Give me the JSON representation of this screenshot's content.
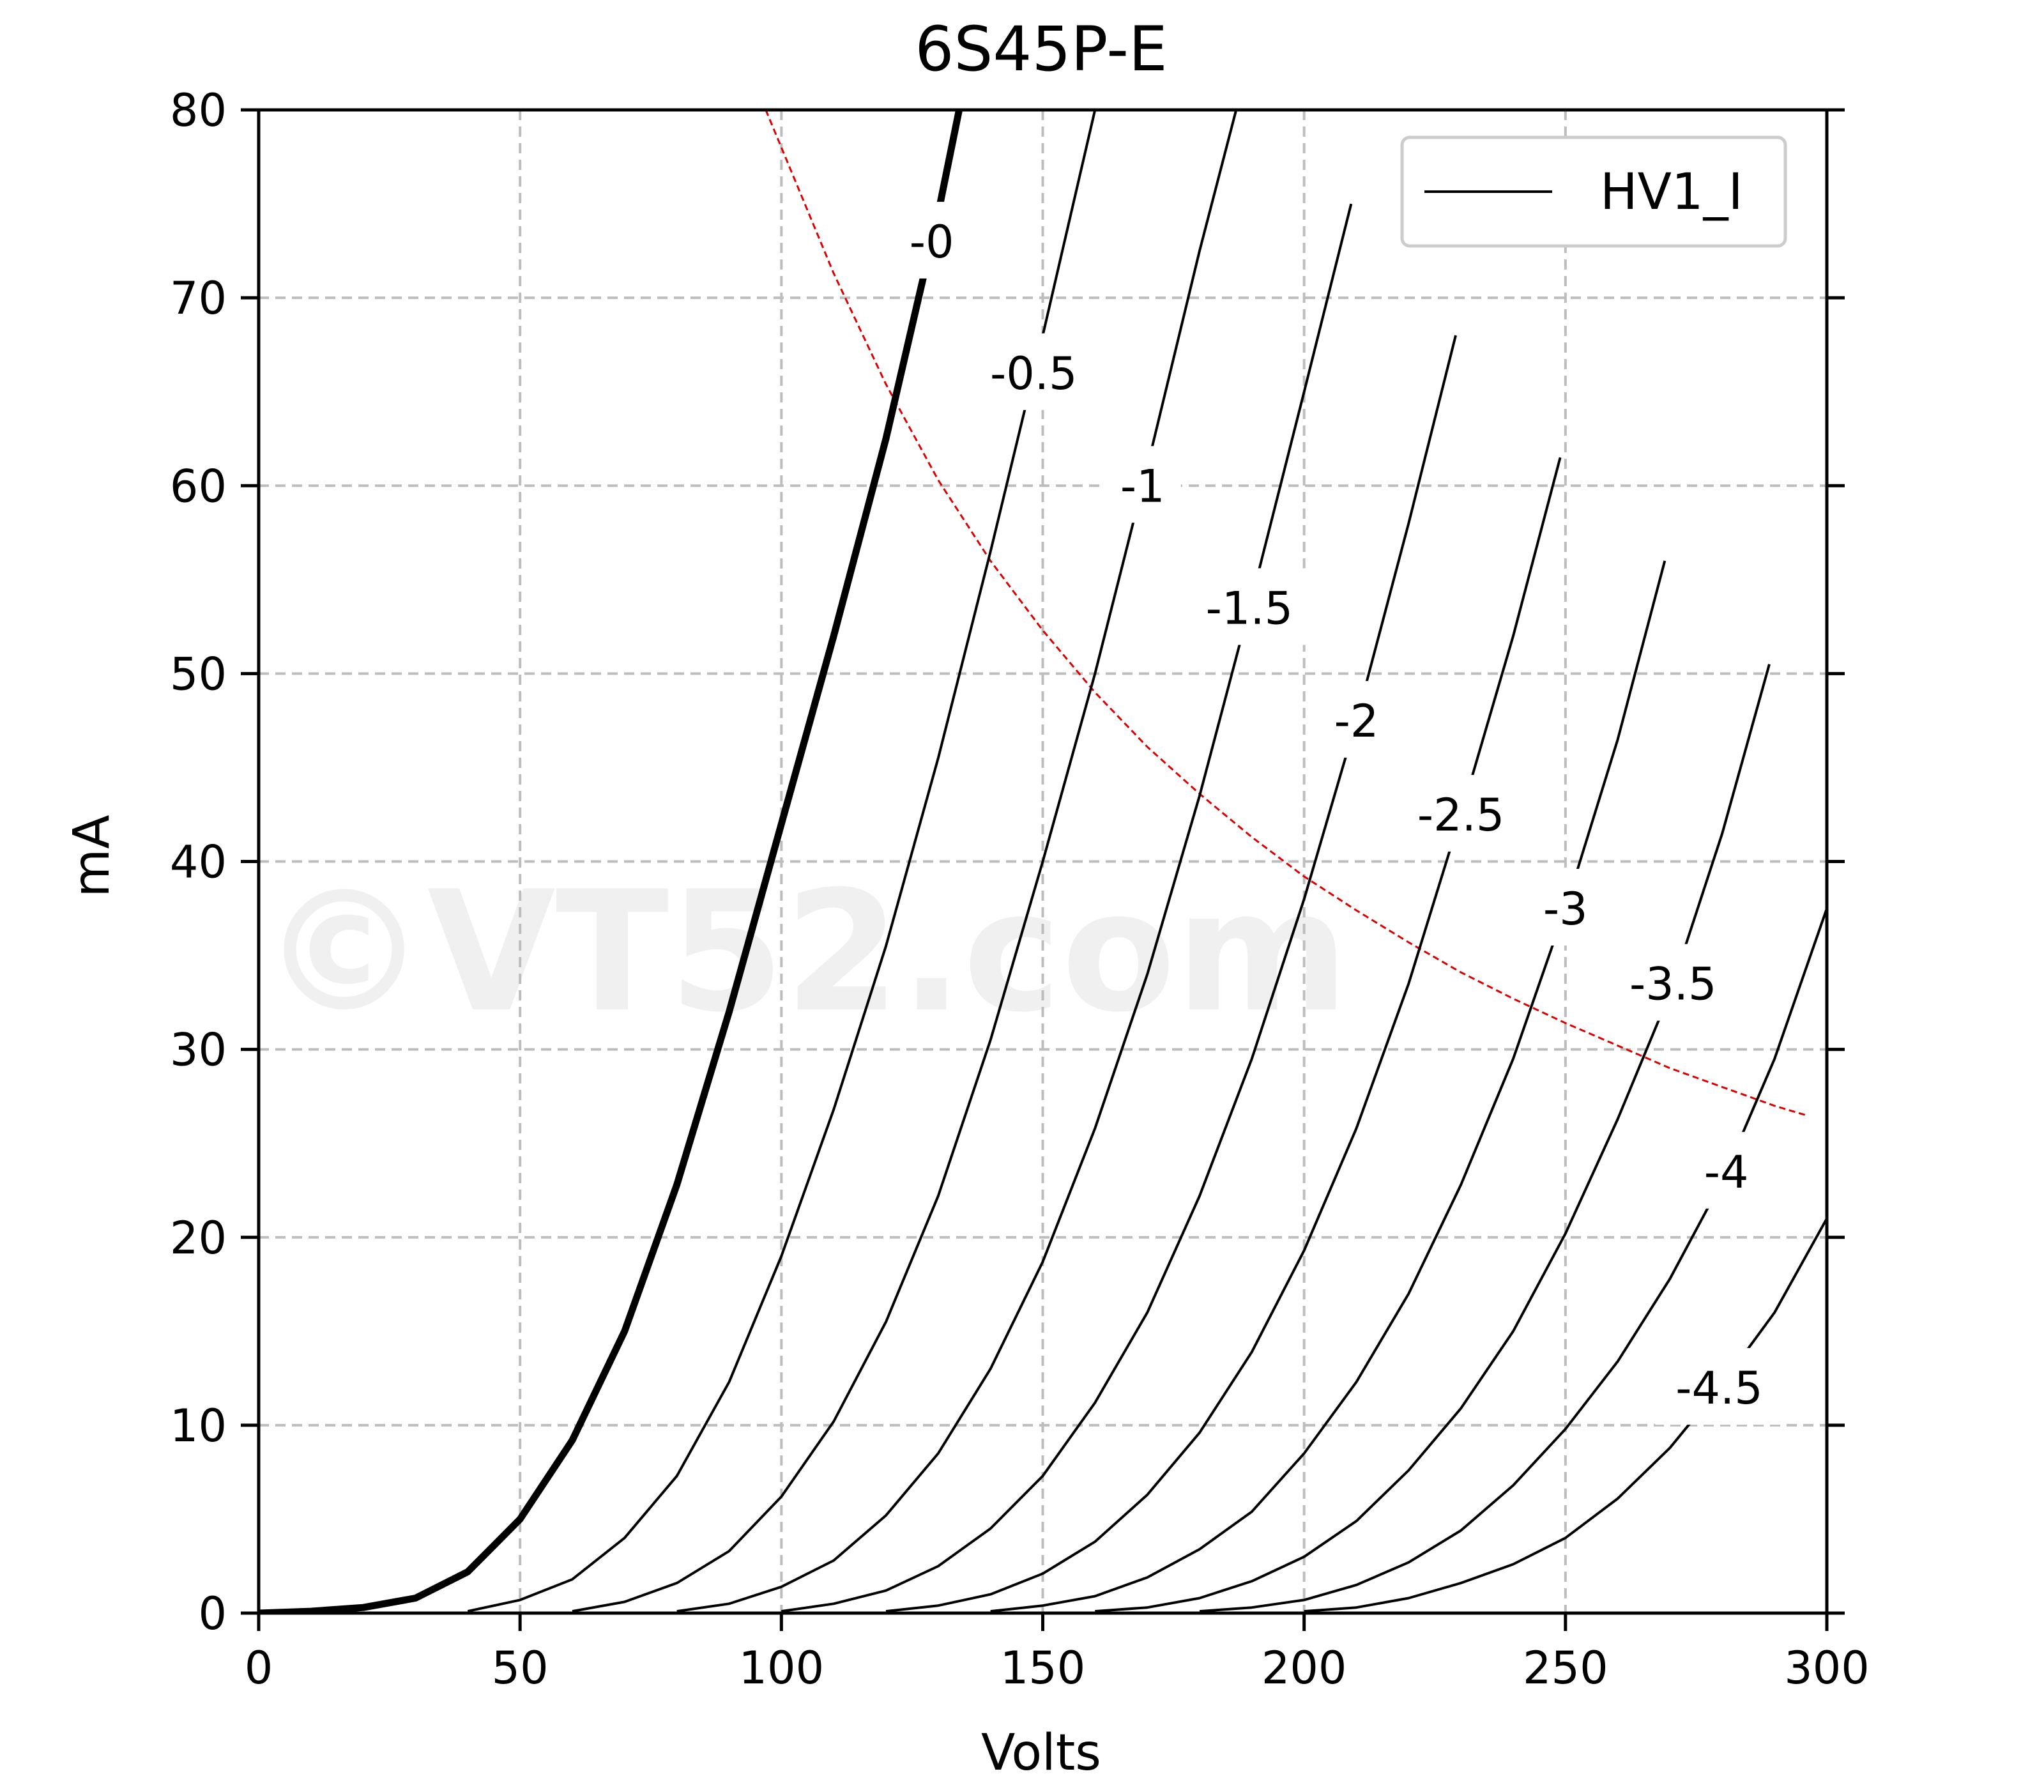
{
  "chart_data": {
    "type": "line",
    "title": "6S45P-E",
    "xlabel": "Volts",
    "ylabel": "mA",
    "xlim": [
      0,
      300
    ],
    "ylim": [
      0,
      80
    ],
    "xticks": [
      "0",
      "50",
      "100",
      "150",
      "200",
      "250",
      "300"
    ],
    "yticks": [
      "0",
      "10",
      "20",
      "30",
      "40",
      "50",
      "60",
      "70",
      "80"
    ],
    "grid": true,
    "legend": {
      "position": "top-right",
      "entries": [
        "HV1_I"
      ]
    },
    "watermark": "©VT52.com",
    "colors": {
      "curve": "#000000",
      "load_line": "#dd0000",
      "grid": "#bdbdbd"
    },
    "series": [
      {
        "label": "-0",
        "x": [
          0,
          10,
          20,
          30,
          40,
          50,
          60,
          70,
          80,
          90,
          100,
          110,
          120,
          130,
          134
        ],
        "y": [
          0,
          0.1,
          0.3,
          0.8,
          2.2,
          5.0,
          9.2,
          15.0,
          22.8,
          32.0,
          42.0,
          52.0,
          62.5,
          74.5,
          80
        ]
      },
      {
        "label": "-0.5",
        "x": [
          40,
          50,
          60,
          70,
          80,
          90,
          100,
          110,
          120,
          130,
          140,
          150,
          160
        ],
        "y": [
          0.1,
          0.7,
          1.8,
          4.0,
          7.3,
          12.3,
          19.0,
          26.8,
          35.5,
          45.5,
          56.5,
          68.0,
          80
        ]
      },
      {
        "label": "-1",
        "x": [
          60,
          70,
          80,
          90,
          100,
          110,
          120,
          130,
          140,
          150,
          160,
          170,
          180,
          187
        ],
        "y": [
          0.1,
          0.6,
          1.6,
          3.3,
          6.2,
          10.2,
          15.5,
          22.2,
          30.5,
          40.0,
          50.0,
          61.0,
          72.5,
          80
        ]
      },
      {
        "label": "-1.5",
        "x": [
          80,
          90,
          100,
          110,
          120,
          130,
          140,
          150,
          160,
          170,
          180,
          190,
          200,
          209
        ],
        "y": [
          0.1,
          0.5,
          1.4,
          2.8,
          5.2,
          8.5,
          13.0,
          18.7,
          25.8,
          34.0,
          43.5,
          54.0,
          65.0,
          75.0
        ]
      },
      {
        "label": "-2",
        "x": [
          100,
          110,
          120,
          130,
          140,
          150,
          160,
          170,
          180,
          190,
          200,
          210,
          220,
          229
        ],
        "y": [
          0.1,
          0.5,
          1.2,
          2.5,
          4.5,
          7.3,
          11.2,
          16.0,
          22.2,
          29.5,
          38.0,
          47.5,
          58.0,
          68.0
        ]
      },
      {
        "label": "-2.5",
        "x": [
          120,
          130,
          140,
          150,
          160,
          170,
          180,
          190,
          200,
          210,
          220,
          230,
          240,
          249
        ],
        "y": [
          0.1,
          0.4,
          1.0,
          2.1,
          3.8,
          6.3,
          9.6,
          13.9,
          19.3,
          25.8,
          33.5,
          42.5,
          52.0,
          61.5
        ]
      },
      {
        "label": "-3",
        "x": [
          140,
          150,
          160,
          170,
          180,
          190,
          200,
          210,
          220,
          230,
          240,
          250,
          260,
          269
        ],
        "y": [
          0.1,
          0.4,
          0.9,
          1.9,
          3.4,
          5.4,
          8.5,
          12.3,
          17.0,
          22.8,
          29.5,
          37.5,
          46.5,
          56.0
        ]
      },
      {
        "label": "-3.5",
        "x": [
          160,
          170,
          180,
          190,
          200,
          210,
          220,
          230,
          240,
          250,
          260,
          270,
          280,
          289
        ],
        "y": [
          0.1,
          0.3,
          0.8,
          1.7,
          3.0,
          4.9,
          7.6,
          10.9,
          15.0,
          20.2,
          26.3,
          33.0,
          41.5,
          50.5
        ]
      },
      {
        "label": "-4",
        "x": [
          180,
          190,
          200,
          210,
          220,
          230,
          240,
          250,
          260,
          270,
          280,
          290,
          300
        ],
        "y": [
          0.1,
          0.3,
          0.7,
          1.5,
          2.7,
          4.4,
          6.8,
          9.8,
          13.4,
          17.8,
          23.0,
          29.5,
          37.5
        ]
      },
      {
        "label": "-4.5",
        "x": [
          200,
          210,
          220,
          230,
          240,
          250,
          260,
          270,
          280,
          290,
          300
        ],
        "y": [
          0.1,
          0.3,
          0.8,
          1.6,
          2.6,
          4.0,
          6.1,
          8.8,
          12.2,
          16.0,
          21.0
        ]
      }
    ],
    "load_line": {
      "type": "constant-power",
      "x": [
        97,
        100,
        110,
        120,
        130,
        140,
        150,
        160,
        170,
        180,
        190,
        200,
        210,
        220,
        230,
        240,
        250,
        260,
        270,
        280,
        290,
        296
      ],
      "y": [
        80,
        78,
        71.3,
        65.4,
        60.3,
        56.0,
        52.3,
        49.0,
        46.1,
        43.6,
        41.3,
        39.2,
        37.4,
        35.7,
        34.1,
        32.7,
        31.4,
        30.2,
        29.0,
        28.0,
        27.0,
        26.5
      ]
    }
  }
}
